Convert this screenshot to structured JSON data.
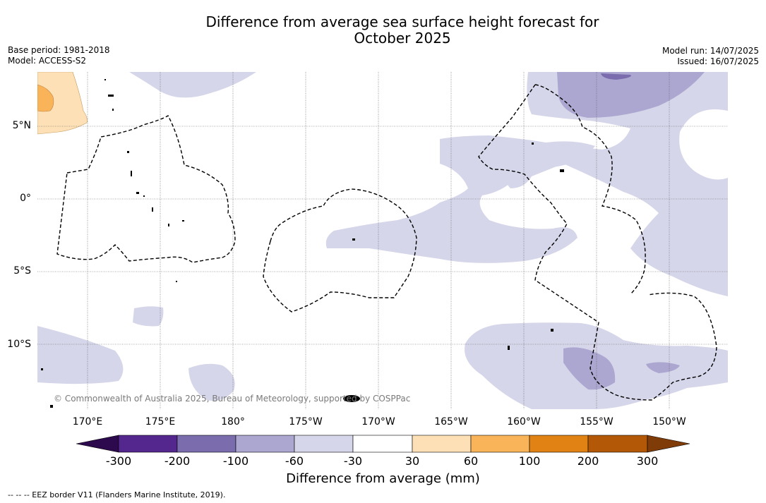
{
  "title": "Difference from average sea surface height forecast for\nOctober 2025",
  "meta_left": {
    "base_period": "Base period: 1981-2018",
    "model": "Model: ACCESS-S2"
  },
  "meta_right": {
    "model_run": "Model run: 14/07/2025",
    "issued": "Issued: 16/07/2025"
  },
  "lat_labels": [
    "5°N",
    "0°",
    "5°S",
    "10°S"
  ],
  "lon_labels": [
    "170°E",
    "175°E",
    "180°",
    "175°W",
    "170°W",
    "165°W",
    "160°W",
    "155°W",
    "150°W"
  ],
  "copyright": "© Commonwealth of Australia 2025, Bureau of Meteorology, supported by COSPPac",
  "colorbar": {
    "ticks": [
      "-300",
      "-200",
      "-100",
      "-60",
      "-30",
      "30",
      "60",
      "100",
      "200",
      "300"
    ],
    "label": "Difference from average (mm)",
    "colors": [
      "#2d0a4e",
      "#54278f",
      "#7b6cae",
      "#aca7d0",
      "#d6d6ea",
      "#ffffff",
      "#fde0b6",
      "#f9b45a",
      "#e08214",
      "#b35806",
      "#7f3b08"
    ]
  },
  "footnote": "--  --  -- EEZ border V11 (Flanders Marine Institute, 2019).",
  "legend_colors": {
    "land": "#000000",
    "eez_border": "#000000"
  }
}
